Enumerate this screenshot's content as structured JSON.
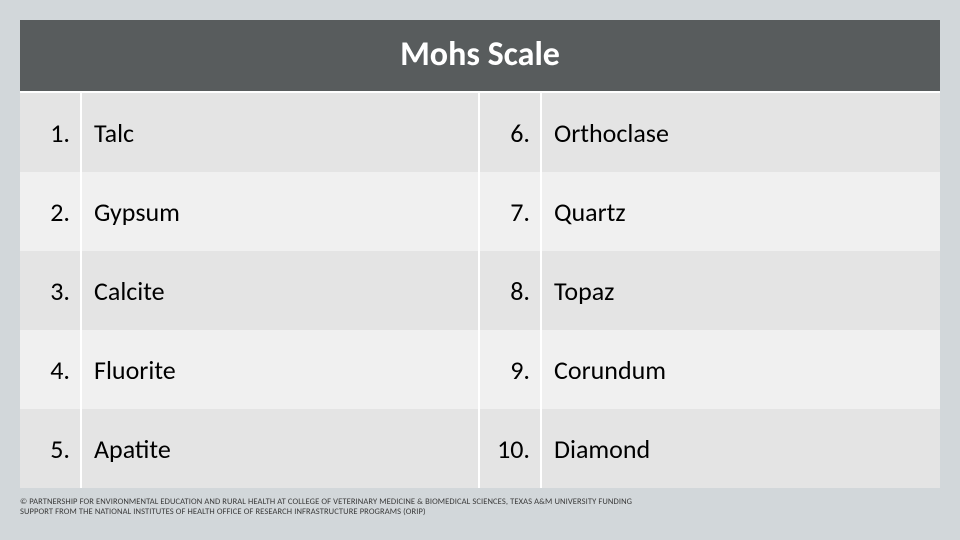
{
  "colors": {
    "page_bg": "#d2d7da",
    "title_bg": "#585c5d",
    "title_fg": "#ffffff",
    "row_alt1": "#e4e4e4",
    "row_alt2": "#f0f0f0",
    "divider": "#ffffff",
    "text": "#000000",
    "footer_text": "#3a3a3a"
  },
  "typography": {
    "title_fontsize": 34,
    "title_weight": 700,
    "cell_fontsize": 26,
    "footer_fontsize": 8.5
  },
  "table": {
    "type": "table",
    "title": "Mohs Scale",
    "columns": 2,
    "left": [
      {
        "num": "1.",
        "name": "Talc"
      },
      {
        "num": "2.",
        "name": "Gypsum"
      },
      {
        "num": "3.",
        "name": "Calcite"
      },
      {
        "num": "4.",
        "name": "Fluorite"
      },
      {
        "num": "5.",
        "name": "Apatite"
      }
    ],
    "right": [
      {
        "num": "6.",
        "name": "Orthoclase"
      },
      {
        "num": "7.",
        "name": "Quartz"
      },
      {
        "num": "8.",
        "name": "Topaz"
      },
      {
        "num": "9.",
        "name": "Corundum"
      },
      {
        "num": "10.",
        "name": "Diamond"
      }
    ]
  },
  "footer": "© PARTNERSHIP FOR ENVIRONMENTAL EDUCATION AND RURAL HEALTH AT  COLLEGE OF VETERINARY MEDICINE & BIOMEDICAL SCIENCES, TEXAS A&M UNIVERSITY   FUNDING SUPPORT FROM THE NATIONAL INSTITUTES OF HEALTH OFFICE OF RESEARCH INFRASTRUCTURE PROGRAMS (ORIP)"
}
